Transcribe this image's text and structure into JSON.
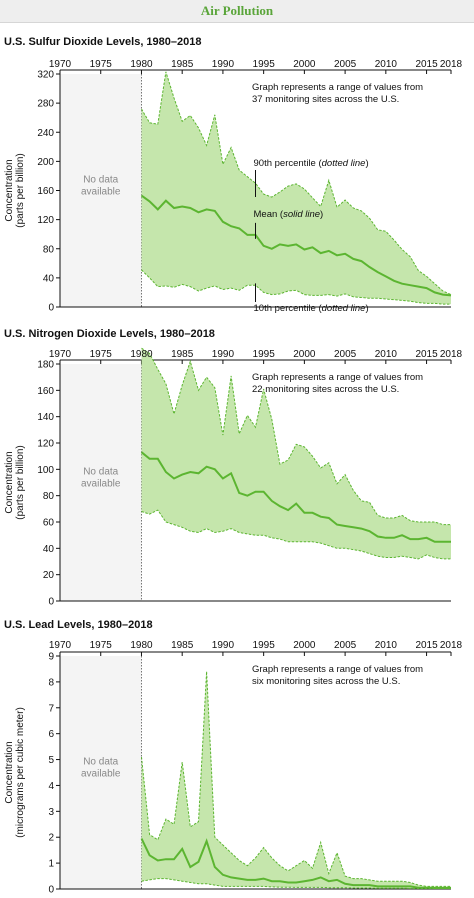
{
  "banner": {
    "title": "Air Pollution"
  },
  "colors": {
    "band": "#c5e6ac",
    "line": "#5cb531",
    "nodata": "#f4f4f4"
  },
  "chart_data": [
    {
      "type": "area",
      "title": "U.S. Sulfur Dioxide Levels, 1980–2018",
      "ylabel": [
        "Concentration",
        "(parts per billion)"
      ],
      "xlim": [
        1970,
        2018
      ],
      "ylim": [
        0,
        320
      ],
      "yticks": [
        0,
        40,
        80,
        120,
        160,
        200,
        240,
        280,
        320
      ],
      "xticks": [
        1970,
        1975,
        1980,
        1985,
        1990,
        1995,
        2000,
        2005,
        2010,
        2015,
        2018
      ],
      "no_data_label": [
        "No data",
        "available"
      ],
      "notes": [
        "Graph represents a range of values from",
        "37 monitoring sites across the U.S."
      ],
      "annotations": {
        "p90": {
          "label": "90th percentile (",
          "style": "dotted line",
          "end": ")",
          "year": 1994,
          "value": 151
        },
        "mean": {
          "label": "Mean (",
          "style": "solid line",
          "end": ")",
          "year": 1994,
          "value": 99
        },
        "p10": {
          "label": "10th percentile (",
          "style": "dotted line",
          "end": ")",
          "year": 1994,
          "value": 27
        }
      },
      "x": [
        1980,
        1981,
        1982,
        1983,
        1984,
        1985,
        1986,
        1987,
        1988,
        1989,
        1990,
        1991,
        1992,
        1993,
        1994,
        1995,
        1996,
        1997,
        1998,
        1999,
        2000,
        2001,
        2002,
        2003,
        2004,
        2005,
        2006,
        2007,
        2008,
        2009,
        2010,
        2011,
        2012,
        2013,
        2014,
        2015,
        2016,
        2017,
        2018
      ],
      "series": [
        {
          "name": "90th percentile",
          "values": [
            272,
            253,
            251,
            323,
            287,
            255,
            263,
            246,
            222,
            264,
            196,
            219,
            188,
            179,
            170,
            155,
            151,
            158,
            166,
            169,
            162,
            150,
            138,
            174,
            137,
            147,
            136,
            132,
            122,
            106,
            104,
            92,
            79,
            69,
            50,
            42,
            32,
            22,
            17
          ]
        },
        {
          "name": "Mean",
          "values": [
            153,
            145,
            134,
            146,
            136,
            138,
            136,
            130,
            134,
            132,
            117,
            111,
            108,
            99,
            99,
            84,
            80,
            86,
            84,
            86,
            79,
            82,
            74,
            77,
            71,
            73,
            66,
            63,
            55,
            48,
            42,
            36,
            32,
            30,
            28,
            26,
            20,
            17,
            16
          ]
        },
        {
          "name": "10th percentile",
          "values": [
            51,
            40,
            28,
            29,
            27,
            31,
            28,
            22,
            26,
            29,
            24,
            26,
            23,
            30,
            30,
            20,
            17,
            18,
            22,
            23,
            17,
            16,
            16,
            17,
            15,
            18,
            14,
            13,
            12,
            12,
            11,
            10,
            9,
            8,
            6,
            5,
            5,
            4,
            4
          ]
        }
      ]
    },
    {
      "type": "area",
      "title": "U.S. Nitrogen Dioxide Levels, 1980–2018",
      "ylabel": [
        "Concentration",
        "(parts per billion)"
      ],
      "xlim": [
        1970,
        2018
      ],
      "ylim": [
        0,
        180
      ],
      "yticks": [
        0,
        20,
        40,
        60,
        80,
        100,
        120,
        140,
        160,
        180
      ],
      "xticks": [
        1970,
        1975,
        1980,
        1985,
        1990,
        1995,
        2000,
        2005,
        2010,
        2015,
        2018
      ],
      "no_data_label": [
        "No data",
        "available"
      ],
      "notes": [
        "Graph represents a range of values from",
        "22 monitoring sites across the U.S."
      ],
      "x": [
        1980,
        1981,
        1982,
        1983,
        1984,
        1985,
        1986,
        1987,
        1988,
        1989,
        1990,
        1991,
        1992,
        1993,
        1994,
        1995,
        1996,
        1997,
        1998,
        1999,
        2000,
        2001,
        2002,
        2003,
        2004,
        2005,
        2006,
        2007,
        2008,
        2009,
        2010,
        2011,
        2012,
        2013,
        2014,
        2015,
        2016,
        2017,
        2018
      ],
      "series": [
        {
          "name": "90th percentile",
          "values": [
            192,
            188,
            176,
            165,
            142,
            164,
            182,
            160,
            170,
            162,
            126,
            171,
            127,
            141,
            132,
            161,
            138,
            104,
            107,
            119,
            117,
            110,
            101,
            105,
            89,
            96,
            84,
            76,
            75,
            65,
            63,
            63,
            65,
            61,
            60,
            60,
            60,
            58,
            58
          ]
        },
        {
          "name": "Mean",
          "values": [
            113,
            108,
            108,
            98,
            93,
            96,
            98,
            97,
            102,
            100,
            93,
            97,
            82,
            80,
            83,
            83,
            76,
            72,
            69,
            74,
            67,
            67,
            64,
            63,
            58,
            57,
            56,
            55,
            53,
            49,
            48,
            48,
            50,
            47,
            47,
            48,
            45,
            45,
            45
          ]
        },
        {
          "name": "10th percentile",
          "values": [
            68,
            66,
            69,
            60,
            58,
            56,
            53,
            52,
            55,
            52,
            53,
            55,
            52,
            51,
            50,
            50,
            48,
            47,
            45,
            45,
            45,
            45,
            44,
            42,
            40,
            40,
            39,
            38,
            36,
            34,
            33,
            33,
            34,
            33,
            32,
            35,
            33,
            32,
            32
          ]
        }
      ]
    },
    {
      "type": "area",
      "title": "U.S. Lead Levels, 1980–2018",
      "ylabel": [
        "Concentration",
        "(micrograms per cubic meter)"
      ],
      "xlim": [
        1970,
        2018
      ],
      "ylim": [
        0,
        9
      ],
      "yticks": [
        0,
        1,
        2,
        3,
        4,
        5,
        6,
        7,
        8,
        9
      ],
      "xticks": [
        1970,
        1975,
        1980,
        1985,
        1990,
        1995,
        2000,
        2005,
        2010,
        2015,
        2018
      ],
      "no_data_label": [
        "No data",
        "available"
      ],
      "notes": [
        "Graph represents a range of values from",
        "six monitoring sites across the U.S."
      ],
      "x": [
        1980,
        1981,
        1982,
        1983,
        1984,
        1985,
        1986,
        1987,
        1988,
        1989,
        1990,
        1991,
        1992,
        1993,
        1994,
        1995,
        1996,
        1997,
        1998,
        1999,
        2000,
        2001,
        2002,
        2003,
        2004,
        2005,
        2006,
        2007,
        2008,
        2009,
        2010,
        2011,
        2012,
        2013,
        2014,
        2015,
        2016,
        2017,
        2018
      ],
      "series": [
        {
          "name": "90th percentile",
          "values": [
            5.1,
            2.1,
            1.9,
            2.7,
            2.5,
            4.9,
            2.4,
            2.6,
            8.4,
            2.0,
            1.7,
            1.4,
            1.1,
            0.9,
            1.2,
            1.6,
            1.2,
            0.9,
            0.7,
            0.9,
            1.1,
            0.8,
            1.8,
            0.6,
            1.4,
            0.5,
            0.4,
            0.4,
            0.35,
            0.3,
            0.3,
            0.3,
            0.3,
            0.25,
            0.15,
            0.1,
            0.1,
            0.1,
            0.1
          ]
        },
        {
          "name": "Mean",
          "values": [
            1.95,
            1.3,
            1.1,
            1.15,
            1.15,
            1.55,
            0.85,
            1.05,
            1.85,
            0.85,
            0.55,
            0.45,
            0.4,
            0.35,
            0.35,
            0.4,
            0.3,
            0.3,
            0.25,
            0.25,
            0.3,
            0.35,
            0.45,
            0.3,
            0.35,
            0.2,
            0.15,
            0.15,
            0.15,
            0.1,
            0.1,
            0.1,
            0.1,
            0.1,
            0.05,
            0.05,
            0.04,
            0.04,
            0.04
          ]
        },
        {
          "name": "10th percentile",
          "values": [
            0.3,
            0.35,
            0.4,
            0.4,
            0.35,
            0.3,
            0.25,
            0.2,
            0.2,
            0.15,
            0.1,
            0.1,
            0.1,
            0.1,
            0.1,
            0.1,
            0.08,
            0.07,
            0.07,
            0.06,
            0.06,
            0.06,
            0.06,
            0.05,
            0.05,
            0.05,
            0.04,
            0.04,
            0.04,
            0.03,
            0.03,
            0.03,
            0.03,
            0.02,
            0.02,
            0.02,
            0.02,
            0.02,
            0.02
          ]
        }
      ]
    }
  ]
}
